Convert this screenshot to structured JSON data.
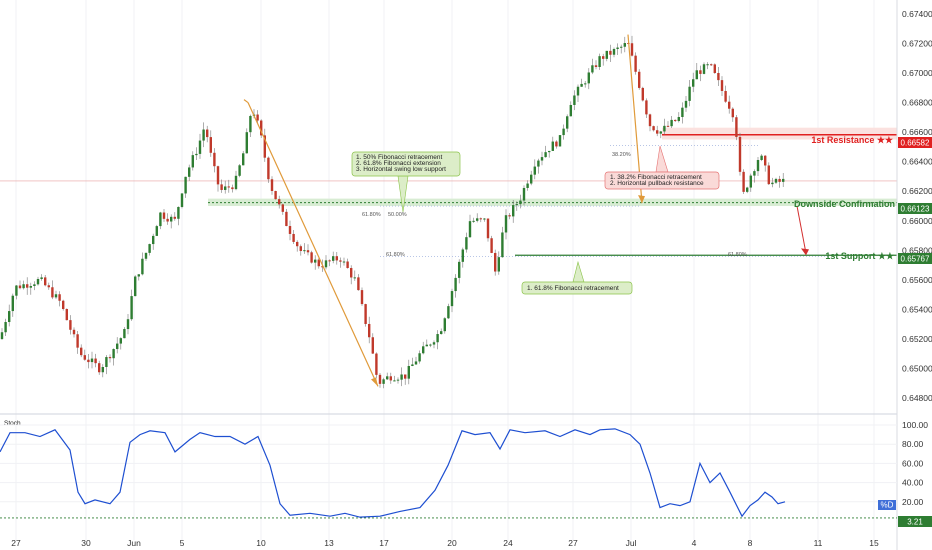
{
  "chart_data": {
    "type": "candlestick",
    "price_axis": {
      "range": [
        0.6472,
        0.6746
      ],
      "ticks": [
        "0.67400",
        "0.67200",
        "0.67000",
        "0.66800",
        "0.66600",
        "0.66400",
        "0.66200",
        "0.66000",
        "0.65800",
        "0.65600",
        "0.65400",
        "0.65200",
        "0.65000",
        "0.64800"
      ],
      "current_price": 0.6627
    },
    "x_axis": {
      "labels": [
        "27",
        "30",
        "Jun",
        "5",
        "10",
        "13",
        "17",
        "20",
        "24",
        "27",
        "Jul",
        "4",
        "8",
        "11",
        "15"
      ]
    },
    "price_path": [
      [
        0,
        0.652
      ],
      [
        15,
        0.6555
      ],
      [
        40,
        0.656
      ],
      [
        60,
        0.6545
      ],
      [
        80,
        0.651
      ],
      [
        100,
        0.65
      ],
      [
        115,
        0.6515
      ],
      [
        125,
        0.6525
      ],
      [
        135,
        0.656
      ],
      [
        150,
        0.6585
      ],
      [
        160,
        0.6605
      ],
      [
        175,
        0.66
      ],
      [
        185,
        0.663
      ],
      [
        198,
        0.665
      ],
      [
        205,
        0.6665
      ],
      [
        212,
        0.664
      ],
      [
        220,
        0.662
      ],
      [
        235,
        0.6625
      ],
      [
        245,
        0.665
      ],
      [
        252,
        0.6678
      ],
      [
        260,
        0.666
      ],
      [
        270,
        0.6625
      ],
      [
        285,
        0.66
      ],
      [
        300,
        0.658
      ],
      [
        320,
        0.657
      ],
      [
        340,
        0.6575
      ],
      [
        355,
        0.656
      ],
      [
        370,
        0.652
      ],
      [
        378,
        0.649
      ],
      [
        390,
        0.6495
      ],
      [
        405,
        0.6495
      ],
      [
        420,
        0.651
      ],
      [
        440,
        0.6525
      ],
      [
        455,
        0.656
      ],
      [
        470,
        0.66
      ],
      [
        485,
        0.66
      ],
      [
        495,
        0.6565
      ],
      [
        505,
        0.66
      ],
      [
        520,
        0.6615
      ],
      [
        535,
        0.664
      ],
      [
        550,
        0.665
      ],
      [
        560,
        0.6655
      ],
      [
        570,
        0.668
      ],
      [
        585,
        0.6695
      ],
      [
        600,
        0.671
      ],
      [
        615,
        0.6715
      ],
      [
        628,
        0.672
      ],
      [
        640,
        0.669
      ],
      [
        650,
        0.6665
      ],
      [
        660,
        0.666
      ],
      [
        680,
        0.667
      ],
      [
        695,
        0.67
      ],
      [
        710,
        0.6705
      ],
      [
        722,
        0.6688
      ],
      [
        735,
        0.667
      ],
      [
        742,
        0.6615
      ],
      [
        750,
        0.663
      ],
      [
        760,
        0.6645
      ],
      [
        770,
        0.6625
      ],
      [
        785,
        0.6627
      ]
    ],
    "levels": [
      {
        "name": "1st Resistance ★★",
        "price": 0.66582,
        "label": "0.66582",
        "color": "#e02020"
      },
      {
        "name": "Downside Confirmation",
        "price": 0.66123,
        "label": "0.66123",
        "color": "#2e7d32"
      },
      {
        "name": "1st Support ★★",
        "price": 0.65767,
        "label": "0.65767",
        "color": "#2e7d32"
      }
    ],
    "annotations": {
      "green_top": [
        "1. 50% Fibonacci retracement",
        "2. 61.8% Fibonacci extension",
        "3. Horizontal swing low support"
      ],
      "red_mid": [
        "1. 38.2% Fibonacci retracement",
        "2. Horizontal pullback resistance"
      ],
      "green_bottom": [
        "1. 61.8% Fibonacci retracement"
      ],
      "fib_labels": {
        "f618a": "61.80%",
        "f50": "50.00%",
        "f618b": "61.80%",
        "f382": "38.20%",
        "f618c": "61.80%"
      }
    },
    "stoch": {
      "label": "Stoch",
      "range": [
        0,
        100
      ],
      "ticks": [
        "100.00",
        "80.00",
        "60.00",
        "40.00",
        "20.00"
      ],
      "current_label": "%D",
      "low_label": "3.21",
      "low_value": 3.21,
      "values": [
        [
          0,
          72
        ],
        [
          10,
          92
        ],
        [
          25,
          92
        ],
        [
          40,
          88
        ],
        [
          55,
          95
        ],
        [
          70,
          74
        ],
        [
          78,
          30
        ],
        [
          85,
          18
        ],
        [
          95,
          22
        ],
        [
          110,
          18
        ],
        [
          120,
          30
        ],
        [
          130,
          82
        ],
        [
          140,
          90
        ],
        [
          150,
          94
        ],
        [
          165,
          92
        ],
        [
          175,
          72
        ],
        [
          190,
          85
        ],
        [
          200,
          92
        ],
        [
          215,
          88
        ],
        [
          230,
          88
        ],
        [
          245,
          80
        ],
        [
          258,
          88
        ],
        [
          270,
          58
        ],
        [
          280,
          18
        ],
        [
          290,
          6
        ],
        [
          310,
          8
        ],
        [
          330,
          5
        ],
        [
          345,
          8
        ],
        [
          360,
          4
        ],
        [
          380,
          5
        ],
        [
          400,
          10
        ],
        [
          420,
          14
        ],
        [
          435,
          32
        ],
        [
          448,
          58
        ],
        [
          462,
          94
        ],
        [
          475,
          90
        ],
        [
          490,
          92
        ],
        [
          500,
          75
        ],
        [
          510,
          95
        ],
        [
          525,
          92
        ],
        [
          545,
          94
        ],
        [
          560,
          88
        ],
        [
          575,
          95
        ],
        [
          590,
          90
        ],
        [
          600,
          95
        ],
        [
          615,
          96
        ],
        [
          630,
          90
        ],
        [
          640,
          80
        ],
        [
          650,
          50
        ],
        [
          660,
          14
        ],
        [
          670,
          18
        ],
        [
          680,
          16
        ],
        [
          690,
          20
        ],
        [
          700,
          60
        ],
        [
          710,
          40
        ],
        [
          720,
          50
        ],
        [
          730,
          30
        ],
        [
          742,
          5
        ],
        [
          750,
          16
        ],
        [
          758,
          22
        ],
        [
          765,
          30
        ],
        [
          772,
          25
        ],
        [
          778,
          18
        ],
        [
          785,
          20
        ]
      ]
    },
    "ranges": {
      "downside": [
        0.661,
        0.6615
      ],
      "resistance": [
        0.6655,
        0.6663
      ],
      "support": [
        0.6576,
        0.6577
      ]
    }
  }
}
